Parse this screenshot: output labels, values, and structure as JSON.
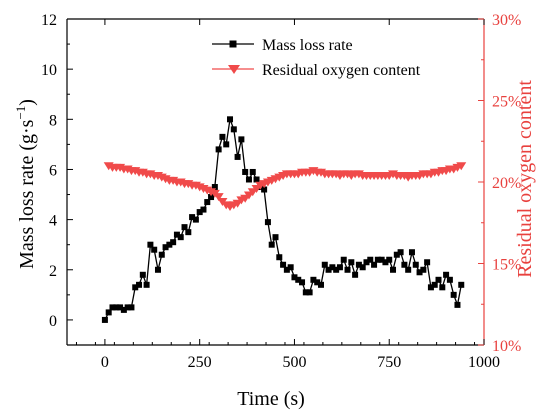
{
  "chart_data": {
    "type": "line",
    "xlabel": "Time (s)",
    "ylabel_left": "Mass loss rate (g·s",
    "ylabel_left_sup": "−1",
    "ylabel_left_close": ")",
    "ylabel_right": "Residual oxygen content",
    "xlim": [
      -100,
      1000
    ],
    "ylim_left": [
      -1,
      12
    ],
    "ylim_right": [
      10,
      30
    ],
    "x_ticks": [
      0,
      250,
      500,
      750,
      1000
    ],
    "y_left_ticks": [
      0,
      2,
      4,
      6,
      8,
      10,
      12
    ],
    "y_right_ticks": [
      10,
      15,
      20,
      25,
      30
    ],
    "y_right_tick_suffix": "%",
    "legend_position": "top-right",
    "colors": {
      "left_axis": "#000000",
      "right_axis": "#e8413e",
      "mass_series": "#000000",
      "oxygen_series": "#f04a4a"
    },
    "series": [
      {
        "name": "Mass loss rate",
        "axis": "left",
        "marker": "square",
        "x": [
          0,
          10,
          20,
          30,
          40,
          50,
          60,
          70,
          80,
          90,
          100,
          110,
          120,
          130,
          140,
          150,
          160,
          170,
          180,
          190,
          200,
          210,
          220,
          230,
          240,
          250,
          260,
          270,
          280,
          290,
          300,
          310,
          320,
          330,
          340,
          350,
          360,
          370,
          380,
          390,
          400,
          410,
          420,
          430,
          440,
          450,
          460,
          470,
          480,
          490,
          500,
          510,
          520,
          530,
          540,
          550,
          560,
          570,
          580,
          590,
          600,
          610,
          620,
          630,
          640,
          650,
          660,
          670,
          680,
          690,
          700,
          710,
          720,
          730,
          740,
          750,
          760,
          770,
          780,
          790,
          800,
          810,
          820,
          830,
          840,
          850,
          860,
          870,
          880,
          890,
          900,
          910,
          920,
          930,
          940
        ],
        "y": [
          0.0,
          0.3,
          0.5,
          0.5,
          0.5,
          0.4,
          0.5,
          0.5,
          1.3,
          1.4,
          1.8,
          1.4,
          3.0,
          2.8,
          2.0,
          2.6,
          2.9,
          3.0,
          3.1,
          3.4,
          3.3,
          3.7,
          3.5,
          4.1,
          4.0,
          4.3,
          4.4,
          4.7,
          4.9,
          5.3,
          6.8,
          7.3,
          7.0,
          8.0,
          7.6,
          6.5,
          7.2,
          5.9,
          5.6,
          5.9,
          5.6,
          5.3,
          5.2,
          3.9,
          3.0,
          3.3,
          2.5,
          2.2,
          2.0,
          2.1,
          1.7,
          1.6,
          1.5,
          1.1,
          1.1,
          1.6,
          1.5,
          1.4,
          2.2,
          2.0,
          2.1,
          2.0,
          2.1,
          2.4,
          2.0,
          2.3,
          1.8,
          2.2,
          2.1,
          2.3,
          2.4,
          2.2,
          2.4,
          2.4,
          2.3,
          2.4,
          2.0,
          2.6,
          2.7,
          2.2,
          2.0,
          2.7,
          2.2,
          1.9,
          2.0,
          2.3,
          1.3,
          1.4,
          1.6,
          1.3,
          1.8,
          1.6,
          1.0,
          0.6,
          1.4
        ]
      },
      {
        "name": "Residual oxygen content",
        "axis": "right",
        "marker": "triangle-down",
        "x": [
          10,
          20,
          30,
          40,
          50,
          60,
          70,
          80,
          90,
          100,
          110,
          120,
          130,
          140,
          150,
          160,
          170,
          180,
          190,
          200,
          210,
          220,
          230,
          240,
          250,
          260,
          270,
          280,
          290,
          300,
          310,
          320,
          330,
          340,
          350,
          360,
          370,
          380,
          390,
          400,
          410,
          420,
          430,
          440,
          450,
          460,
          470,
          480,
          490,
          500,
          510,
          520,
          530,
          540,
          550,
          560,
          570,
          580,
          590,
          600,
          610,
          620,
          630,
          640,
          650,
          660,
          670,
          680,
          690,
          700,
          710,
          720,
          730,
          740,
          750,
          760,
          770,
          780,
          790,
          800,
          810,
          820,
          830,
          840,
          850,
          860,
          870,
          880,
          890,
          900,
          910,
          920,
          930,
          940
        ],
        "y": [
          21.0,
          20.9,
          20.9,
          20.9,
          20.8,
          20.8,
          20.7,
          20.7,
          20.6,
          20.6,
          20.5,
          20.5,
          20.4,
          20.4,
          20.3,
          20.2,
          20.1,
          20.1,
          20.0,
          20.0,
          19.9,
          19.9,
          19.8,
          19.8,
          19.7,
          19.6,
          19.5,
          19.4,
          19.3,
          19.1,
          18.8,
          18.6,
          18.5,
          18.6,
          18.7,
          18.9,
          19.0,
          19.2,
          19.4,
          19.6,
          19.8,
          19.9,
          20.0,
          20.1,
          20.2,
          20.3,
          20.4,
          20.5,
          20.5,
          20.5,
          20.5,
          20.6,
          20.6,
          20.6,
          20.7,
          20.6,
          20.6,
          20.5,
          20.5,
          20.5,
          20.5,
          20.4,
          20.5,
          20.5,
          20.4,
          20.5,
          20.5,
          20.4,
          20.4,
          20.4,
          20.4,
          20.4,
          20.4,
          20.4,
          20.4,
          20.5,
          20.4,
          20.4,
          20.4,
          20.3,
          20.4,
          20.4,
          20.4,
          20.5,
          20.5,
          20.5,
          20.6,
          20.6,
          20.7,
          20.7,
          20.8,
          20.8,
          20.9,
          21.0
        ]
      }
    ]
  }
}
